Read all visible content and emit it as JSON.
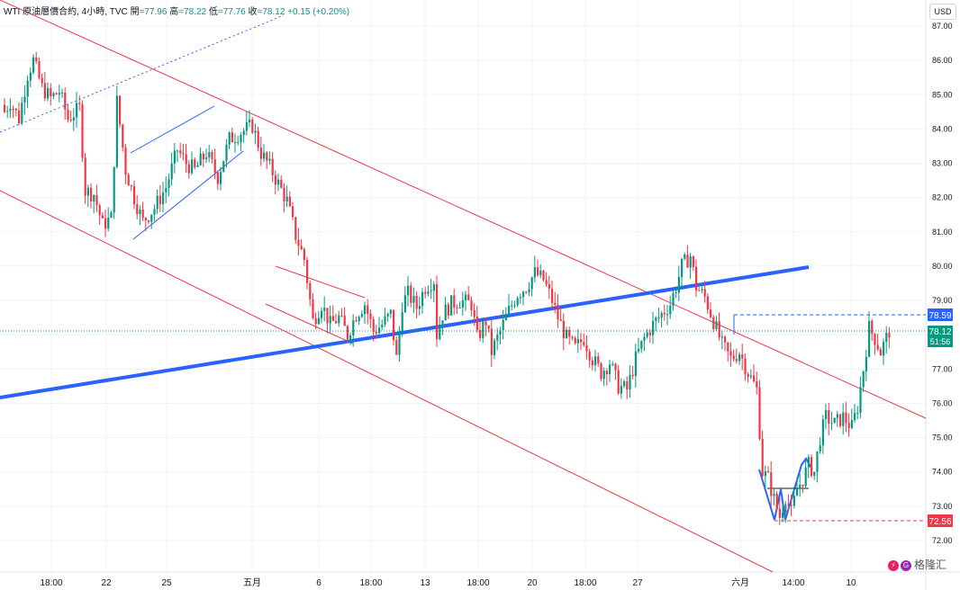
{
  "header": {
    "symbol": "WTI 原油層價合約, 4小時, TVC",
    "open_label": "開",
    "open": "=77.96",
    "high_label": "高",
    "high": "=78.22",
    "low_label": "低",
    "low": "=77.76",
    "close_label": "收",
    "close": "=78.12",
    "change": "+0.15 (+0.20%)"
  },
  "currency_button": "USD",
  "watermark": "格隆汇",
  "colors": {
    "up": "#089981",
    "down": "#f23645",
    "channel": "#f23645",
    "trend": "#2962ff",
    "price_line": "#089981"
  },
  "chart_data": {
    "type": "candlestick",
    "series": [
      {
        "name": "WTI 原油層價合約",
        "interval": "4小時"
      }
    ],
    "y_ticks": [
      "87.00",
      "86.00",
      "85.00",
      "84.00",
      "83.00",
      "82.00",
      "81.00",
      "80.00",
      "79.00",
      "78.00",
      "77.00",
      "76.00",
      "75.00",
      "74.00",
      "73.00",
      "72.00"
    ],
    "x_ticks": [
      "18:00",
      "22",
      "25",
      "五月",
      "6",
      "18:00",
      "13",
      "18:00",
      "20",
      "18:00",
      "27",
      "六月",
      "14:00",
      "10"
    ],
    "ylim": [
      71.6,
      87.5
    ],
    "price_labels": [
      {
        "value": "78.59",
        "color": "#2962ff"
      },
      {
        "value": "78.12",
        "sub": "51:56",
        "color": "#089981"
      },
      {
        "value": "72.56",
        "color": "#f23645"
      }
    ],
    "candle_anchors": [
      [
        0,
        84.5
      ],
      [
        2,
        84.8
      ],
      [
        5,
        84.3
      ],
      [
        8,
        85.6
      ],
      [
        10,
        86.0
      ],
      [
        13,
        85.2
      ],
      [
        16,
        84.9
      ],
      [
        19,
        85.1
      ],
      [
        22,
        84.3
      ],
      [
        26,
        84.6
      ],
      [
        28,
        82.2
      ],
      [
        31,
        82.1
      ],
      [
        34,
        81.2
      ],
      [
        37,
        81.4
      ],
      [
        39,
        84.8
      ],
      [
        42,
        82.8
      ],
      [
        45,
        82.0
      ],
      [
        48,
        81.3
      ],
      [
        52,
        81.7
      ],
      [
        56,
        82.3
      ],
      [
        60,
        83.4
      ],
      [
        63,
        83.0
      ],
      [
        66,
        82.8
      ],
      [
        70,
        83.3
      ],
      [
        74,
        82.6
      ],
      [
        78,
        83.7
      ],
      [
        82,
        83.9
      ],
      [
        86,
        84.1
      ],
      [
        89,
        83.3
      ],
      [
        92,
        82.9
      ],
      [
        95,
        82.4
      ],
      [
        98,
        81.9
      ],
      [
        101,
        80.9
      ],
      [
        104,
        80.2
      ],
      [
        107,
        78.4
      ],
      [
        110,
        78.9
      ],
      [
        113,
        78.3
      ],
      [
        116,
        78.5
      ],
      [
        119,
        78.0
      ],
      [
        122,
        78.6
      ],
      [
        125,
        78.9
      ],
      [
        128,
        78.1
      ],
      [
        131,
        78.3
      ],
      [
        134,
        78.6
      ],
      [
        136,
        77.3
      ],
      [
        138,
        78.9
      ],
      [
        140,
        79.2
      ],
      [
        143,
        78.8
      ],
      [
        146,
        79.4
      ],
      [
        149,
        79.6
      ],
      [
        150,
        78.0
      ],
      [
        152,
        78.6
      ],
      [
        155,
        78.9
      ],
      [
        158,
        79.0
      ],
      [
        162,
        78.9
      ],
      [
        164,
        77.9
      ],
      [
        167,
        78.4
      ],
      [
        169,
        77.5
      ],
      [
        172,
        78.1
      ],
      [
        175,
        78.7
      ],
      [
        178,
        79.2
      ],
      [
        181,
        79.4
      ],
      [
        184,
        79.8
      ],
      [
        187,
        79.6
      ],
      [
        190,
        79.0
      ],
      [
        192,
        78.5
      ],
      [
        195,
        77.9
      ],
      [
        198,
        77.6
      ],
      [
        201,
        77.9
      ],
      [
        204,
        77.3
      ],
      [
        207,
        76.9
      ],
      [
        210,
        77.2
      ],
      [
        213,
        76.5
      ],
      [
        216,
        76.4
      ],
      [
        219,
        77.3
      ],
      [
        222,
        77.9
      ],
      [
        225,
        78.3
      ],
      [
        228,
        78.6
      ],
      [
        231,
        78.9
      ],
      [
        233,
        79.4
      ],
      [
        235,
        80.0
      ],
      [
        238,
        80.3
      ],
      [
        240,
        79.4
      ],
      [
        243,
        79.1
      ],
      [
        246,
        78.4
      ],
      [
        249,
        77.7
      ],
      [
        252,
        77.3
      ],
      [
        255,
        77.5
      ],
      [
        258,
        76.9
      ],
      [
        261,
        76.4
      ],
      [
        263,
        74.0
      ],
      [
        265,
        73.8
      ],
      [
        267,
        73.2
      ],
      [
        269,
        72.7
      ],
      [
        271,
        73.3
      ],
      [
        273,
        72.8
      ],
      [
        275,
        73.5
      ],
      [
        277,
        73.8
      ],
      [
        279,
        74.2
      ],
      [
        281,
        74.0
      ],
      [
        283,
        75.0
      ],
      [
        285,
        75.6
      ],
      [
        288,
        75.4
      ],
      [
        291,
        75.6
      ],
      [
        294,
        75.3
      ],
      [
        296,
        75.9
      ],
      [
        298,
        77.0
      ],
      [
        300,
        78.2
      ],
      [
        302,
        77.9
      ],
      [
        304,
        77.5
      ],
      [
        306,
        77.9
      ],
      [
        307,
        78.12
      ]
    ]
  }
}
